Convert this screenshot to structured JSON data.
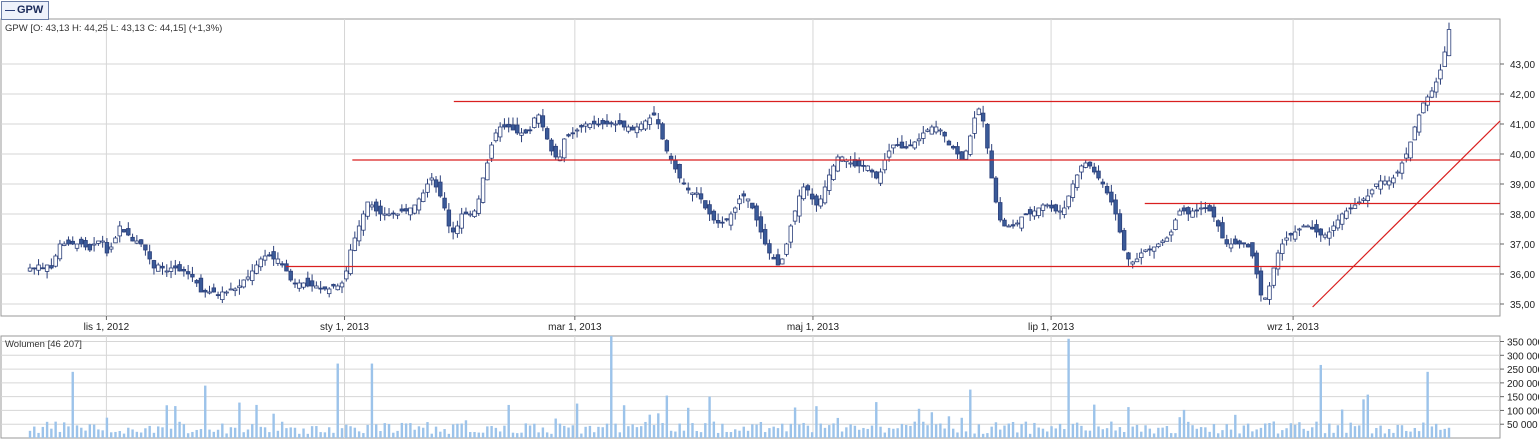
{
  "tab": {
    "label": "GPW"
  },
  "price_header": "GPW [O: 43,13  H: 44,25  L: 43,13  C: 44,15] (+1,3%)",
  "volume_header": "Wolumen [46 207]",
  "colors": {
    "up": "#ffffff",
    "down": "#3a5a98",
    "outline": "#2b3f7a",
    "support": "#d92020",
    "volume": "#9cc3ea",
    "grid": "#d6d6d6"
  },
  "chart_data": [
    {
      "type": "candlestick",
      "title": "GPW",
      "y_axis": {
        "position": "right",
        "min": 34.6,
        "max": 44.5,
        "ticks": [
          "35,00",
          "36,00",
          "37,00",
          "38,00",
          "39,00",
          "40,00",
          "41,00",
          "42,00",
          "43,00"
        ],
        "tick_values": [
          35,
          36,
          37,
          38,
          39,
          40,
          41,
          42,
          43
        ]
      },
      "x_axis": {
        "range": [
          "2012-10-05",
          "2013-10-24"
        ],
        "ticks": [
          {
            "label": "lis 1, 2012",
            "date": "2012-11-01"
          },
          {
            "label": "sty 1, 2013",
            "date": "2013-01-01"
          },
          {
            "label": "mar 1, 2013",
            "date": "2013-03-01"
          },
          {
            "label": "maj 1, 2013",
            "date": "2013-05-01"
          },
          {
            "label": "lip 1, 2013",
            "date": "2013-07-01"
          },
          {
            "label": "wrz 1, 2013",
            "date": "2013-09-01"
          }
        ]
      },
      "close_series": [
        36.2,
        36.2,
        36.3,
        36.2,
        36.3,
        36.2,
        36.6,
        37.0,
        37.0,
        37.0,
        37.0,
        37.0,
        37.0,
        36.9,
        36.8,
        37.0,
        37.1,
        37.1,
        36.7,
        36.9,
        37.2,
        37.6,
        37.4,
        37.3,
        37.1,
        37.1,
        37.0,
        36.8,
        36.5,
        36.2,
        36.3,
        36.2,
        36.1,
        36.2,
        36.2,
        36.1,
        36.1,
        36.0,
        35.9,
        35.7,
        35.4,
        35.4,
        35.4,
        35.4,
        35.3,
        35.4,
        35.4,
        35.5,
        35.5,
        35.6,
        35.8,
        35.9,
        36.1,
        36.3,
        36.5,
        36.6,
        36.6,
        36.5,
        36.5,
        36.3,
        36.1,
        35.8,
        35.7,
        35.7,
        35.7,
        35.6,
        35.6,
        35.6,
        35.5,
        35.5,
        35.5,
        35.6,
        35.6,
        35.7,
        36.1,
        36.8,
        37.2,
        37.6,
        38.0,
        38.4,
        38.3,
        38.1,
        38.0,
        38.0,
        38.0,
        38.0,
        38.0,
        38.1,
        38.1,
        38.2,
        38.3,
        38.5,
        38.7,
        39.0,
        39.2,
        38.9,
        38.6,
        38.2,
        37.6,
        37.4,
        37.6,
        38.0,
        38.0,
        38.0,
        38.1,
        38.5,
        39.2,
        39.7,
        40.3,
        40.7,
        40.9,
        40.9,
        40.9,
        40.8,
        40.7,
        40.7,
        40.7,
        40.8,
        41.2,
        41.3,
        40.9,
        40.5,
        40.1,
        39.9,
        39.9,
        40.5,
        40.6,
        40.7,
        40.8,
        40.9,
        41.0,
        41.0,
        41.0,
        41.0,
        41.0,
        41.0,
        41.0,
        41.0,
        41.0,
        40.9,
        40.9,
        40.8,
        40.9,
        41.0,
        41.1,
        41.2,
        41.3,
        41.0,
        40.5,
        40.1,
        39.8,
        39.5,
        39.2,
        39.0,
        38.8,
        38.7,
        38.7,
        38.5,
        38.2,
        38.0,
        37.8,
        37.7,
        37.7,
        37.8,
        38.0,
        38.2,
        38.5,
        38.6,
        38.5,
        38.2,
        37.8,
        37.4,
        37.0,
        36.7,
        36.5,
        36.3,
        36.5,
        37.0,
        37.6,
        38.1,
        38.6,
        38.9,
        38.8,
        38.5,
        38.3,
        38.5,
        38.9,
        39.3,
        39.6,
        39.9,
        39.9,
        39.8,
        39.7,
        39.6,
        39.6,
        39.6,
        39.6,
        39.4,
        39.2,
        39.4,
        39.8,
        40.1,
        40.3,
        40.3,
        40.2,
        40.2,
        40.3,
        40.4,
        40.5,
        40.7,
        40.8,
        40.9,
        40.9,
        40.8,
        40.6,
        40.3,
        40.2,
        40.0,
        39.8,
        40.1,
        40.6,
        41.2,
        41.5,
        41.1,
        40.2,
        39.2,
        38.4,
        37.8,
        37.6,
        37.6,
        37.6,
        37.7,
        37.9,
        38.0,
        38.0,
        38.1,
        38.2,
        38.3,
        38.3,
        38.2,
        38.1,
        38.1,
        38.2,
        38.6,
        39.0,
        39.3,
        39.6,
        39.7,
        39.6,
        39.4,
        39.2,
        39.0,
        38.7,
        38.4,
        38.0,
        37.4,
        36.8,
        36.5,
        36.4,
        36.5,
        36.7,
        36.8,
        36.8,
        36.9,
        37.0,
        37.1,
        37.2,
        37.4,
        37.8,
        38.1,
        38.1,
        38.0,
        38.1,
        38.1,
        38.2,
        38.2,
        38.1,
        37.9,
        37.6,
        37.2,
        37.0,
        37.0,
        37.0,
        37.0,
        37.0,
        36.9,
        36.6,
        36.0,
        35.3,
        35.2,
        35.6,
        36.2,
        36.7,
        37.0,
        37.2,
        37.3,
        37.4,
        37.5,
        37.6,
        37.6,
        37.5,
        37.4,
        37.3,
        37.3,
        37.4,
        37.6,
        37.8,
        38.0,
        38.1,
        38.2,
        38.3,
        38.4,
        38.5,
        38.6,
        38.8,
        39.0,
        39.1,
        39.1,
        39.1,
        39.2,
        39.4,
        39.7,
        40.0,
        40.4,
        40.9,
        41.3,
        41.7,
        41.9,
        42.1,
        42.4,
        42.8,
        43.4,
        44.15
      ],
      "volume": {
        "title": "Wolumen",
        "y_axis": {
          "min": 0,
          "max": 370000,
          "ticks": [
            "50 000",
            "100 000",
            "150 000",
            "200 000",
            "250 000",
            "300 000",
            "350 000"
          ],
          "tick_values": [
            50000,
            100000,
            150000,
            200000,
            250000,
            300000,
            350000
          ]
        }
      },
      "lines": [
        {
          "type": "horizontal",
          "y": 41.75,
          "from": "2013-01-29",
          "to": "2013-10-24"
        },
        {
          "type": "horizontal",
          "y": 39.8,
          "from": "2013-01-03",
          "to": "2013-10-24"
        },
        {
          "type": "horizontal",
          "y": 38.35,
          "from": "2013-07-25",
          "to": "2013-10-24"
        },
        {
          "type": "horizontal",
          "y": 36.25,
          "from": "2012-12-17",
          "to": "2013-10-24"
        },
        {
          "type": "trend",
          "from": {
            "date": "2013-09-06",
            "y": 34.9
          },
          "to": {
            "date": "2013-10-24",
            "y": 41.1
          }
        }
      ]
    }
  ]
}
